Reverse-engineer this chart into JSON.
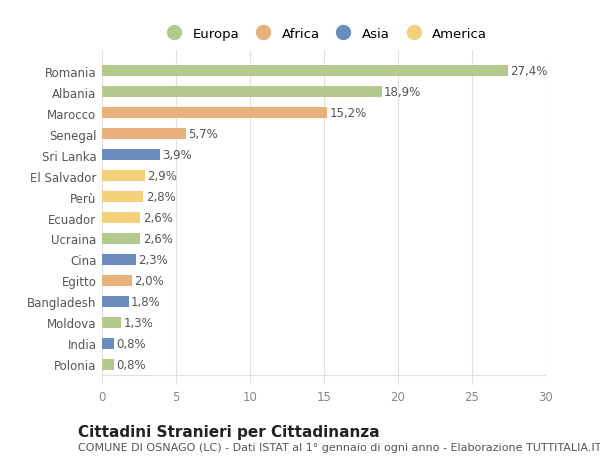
{
  "countries": [
    "Romania",
    "Albania",
    "Marocco",
    "Senegal",
    "Sri Lanka",
    "El Salvador",
    "Perù",
    "Ecuador",
    "Ucraina",
    "Cina",
    "Egitto",
    "Bangladesh",
    "Moldova",
    "India",
    "Polonia"
  ],
  "values": [
    27.4,
    18.9,
    15.2,
    5.7,
    3.9,
    2.9,
    2.8,
    2.6,
    2.6,
    2.3,
    2.0,
    1.8,
    1.3,
    0.8,
    0.8
  ],
  "continents": [
    "Europa",
    "Europa",
    "Africa",
    "Africa",
    "Asia",
    "America",
    "America",
    "America",
    "Europa",
    "Asia",
    "Africa",
    "Asia",
    "Europa",
    "Asia",
    "Europa"
  ],
  "colors": {
    "Europa": "#b5c98e",
    "Africa": "#e8b07a",
    "Asia": "#6b8cbf",
    "America": "#f5d07a"
  },
  "legend_order": [
    "Europa",
    "Africa",
    "Asia",
    "America"
  ],
  "xlim": [
    0,
    30
  ],
  "xticks": [
    0,
    5,
    10,
    15,
    20,
    25,
    30
  ],
  "title": "Cittadini Stranieri per Cittadinanza",
  "subtitle": "COMUNE DI OSNAGO (LC) - Dati ISTAT al 1° gennaio di ogni anno - Elaborazione TUTTITALIA.IT",
  "bg_color": "#ffffff",
  "grid_color": "#e0e0e0",
  "bar_height": 0.55,
  "label_fontsize": 8.5,
  "value_fontsize": 8.5,
  "title_fontsize": 11,
  "subtitle_fontsize": 8
}
